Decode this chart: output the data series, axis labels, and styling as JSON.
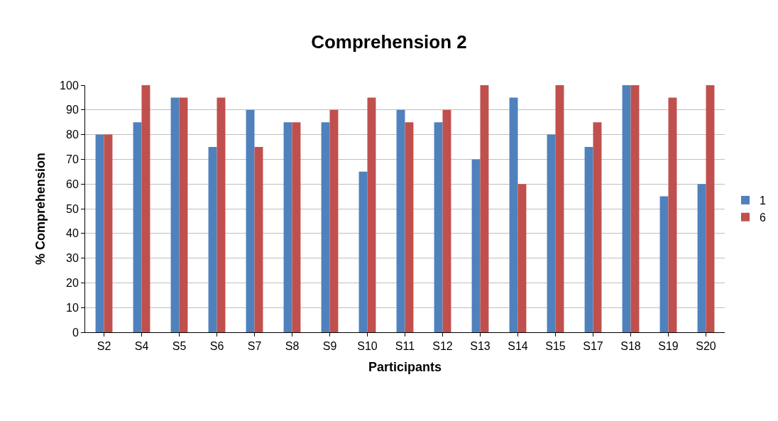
{
  "chart_data": {
    "type": "bar",
    "title": "Comprehension 2",
    "xlabel": "Participants",
    "ylabel": "% Comprehension",
    "categories": [
      "S2",
      "S4",
      "S5",
      "S6",
      "S7",
      "S8",
      "S9",
      "S10",
      "S11",
      "S12",
      "S13",
      "S14",
      "S15",
      "S17",
      "S18",
      "S19",
      "S20"
    ],
    "series": [
      {
        "name": "1",
        "color": "#4f81bd",
        "values": [
          80,
          85,
          95,
          75,
          90,
          85,
          85,
          65,
          90,
          85,
          70,
          95,
          80,
          75,
          100,
          55,
          60
        ]
      },
      {
        "name": "6",
        "color": "#c0504d",
        "values": [
          80,
          100,
          95,
          95,
          75,
          85,
          90,
          95,
          85,
          90,
          100,
          60,
          100,
          85,
          100,
          95,
          100
        ]
      }
    ],
    "ylim": [
      0,
      100
    ],
    "yticks": [
      0,
      10,
      20,
      30,
      40,
      50,
      60,
      70,
      80,
      90,
      100
    ],
    "grid": "y",
    "legend": "right"
  }
}
